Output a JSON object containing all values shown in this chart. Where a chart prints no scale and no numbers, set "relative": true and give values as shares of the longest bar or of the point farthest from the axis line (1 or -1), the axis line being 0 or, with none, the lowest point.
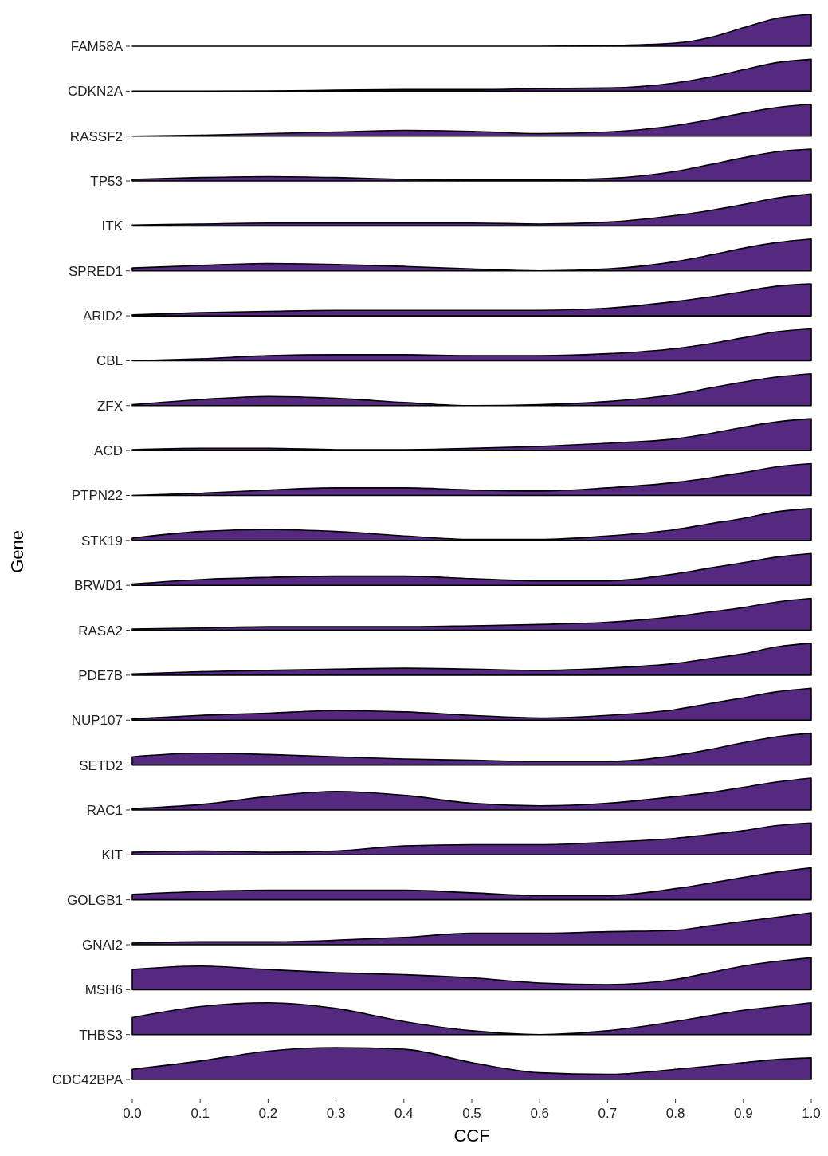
{
  "chart_data": [
    {
      "type": "area",
      "relative": true,
      "ylabel": "FAM58A",
      "xlim": [
        0,
        1
      ],
      "tick_labels": false,
      "x": [
        0,
        0.1,
        0.2,
        0.3,
        0.4,
        0.5,
        0.6,
        0.7,
        0.8,
        0.85,
        0.9,
        0.95,
        1
      ],
      "series": [
        {
          "color": "#55297f",
          "values": [
            0,
            0,
            0,
            0,
            0,
            0,
            0,
            0.02,
            0.1,
            0.27,
            0.58,
            0.88,
            1
          ]
        }
      ]
    },
    {
      "type": "area",
      "relative": true,
      "ylabel": "CDKN2A",
      "xlim": [
        0,
        1
      ],
      "tick_labels": false,
      "x": [
        0,
        0.1,
        0.2,
        0.3,
        0.4,
        0.5,
        0.6,
        0.7,
        0.8,
        0.85,
        0.9,
        0.95,
        1
      ],
      "series": [
        {
          "color": "#55297f",
          "values": [
            0,
            0,
            0.01,
            0.03,
            0.05,
            0.05,
            0.08,
            0.1,
            0.26,
            0.44,
            0.67,
            0.9,
            1
          ]
        }
      ]
    },
    {
      "type": "area",
      "relative": true,
      "ylabel": "RASSF2",
      "xlim": [
        0,
        1
      ],
      "tick_labels": false,
      "x": [
        0,
        0.1,
        0.2,
        0.3,
        0.4,
        0.5,
        0.6,
        0.7,
        0.8,
        0.85,
        0.9,
        0.95,
        1
      ],
      "series": [
        {
          "color": "#55297f",
          "values": [
            0,
            0.03,
            0.08,
            0.13,
            0.18,
            0.15,
            0.08,
            0.13,
            0.33,
            0.51,
            0.72,
            0.9,
            1
          ]
        }
      ]
    },
    {
      "type": "area",
      "relative": true,
      "ylabel": "TP53",
      "xlim": [
        0,
        1
      ],
      "tick_labels": false,
      "x": [
        0,
        0.1,
        0.2,
        0.3,
        0.4,
        0.5,
        0.6,
        0.7,
        0.8,
        0.85,
        0.9,
        0.95,
        1
      ],
      "series": [
        {
          "color": "#55297f",
          "values": [
            0.05,
            0.11,
            0.14,
            0.11,
            0.05,
            0.03,
            0.03,
            0.08,
            0.3,
            0.51,
            0.73,
            0.92,
            1
          ]
        }
      ]
    },
    {
      "type": "area",
      "relative": true,
      "ylabel": "ITK",
      "xlim": [
        0,
        1
      ],
      "tick_labels": false,
      "x": [
        0,
        0.1,
        0.2,
        0.3,
        0.4,
        0.5,
        0.6,
        0.7,
        0.8,
        0.85,
        0.9,
        0.95,
        1
      ],
      "series": [
        {
          "color": "#55297f",
          "values": [
            0.03,
            0.06,
            0.09,
            0.09,
            0.09,
            0.09,
            0.06,
            0.12,
            0.33,
            0.48,
            0.67,
            0.88,
            1
          ]
        }
      ]
    },
    {
      "type": "area",
      "relative": true,
      "ylabel": "SPRED1",
      "xlim": [
        0,
        1
      ],
      "tick_labels": false,
      "x": [
        0,
        0.1,
        0.2,
        0.3,
        0.4,
        0.5,
        0.6,
        0.7,
        0.8,
        0.85,
        0.9,
        0.95,
        1
      ],
      "series": [
        {
          "color": "#55297f",
          "values": [
            0.09,
            0.17,
            0.23,
            0.2,
            0.14,
            0.06,
            0,
            0.06,
            0.29,
            0.49,
            0.71,
            0.89,
            1
          ]
        }
      ]
    },
    {
      "type": "area",
      "relative": true,
      "ylabel": "ARID2",
      "xlim": [
        0,
        1
      ],
      "tick_labels": false,
      "x": [
        0,
        0.1,
        0.2,
        0.3,
        0.4,
        0.5,
        0.6,
        0.7,
        0.8,
        0.85,
        0.9,
        0.95,
        1
      ],
      "series": [
        {
          "color": "#55297f",
          "values": [
            0.03,
            0.1,
            0.14,
            0.17,
            0.17,
            0.17,
            0.17,
            0.24,
            0.45,
            0.59,
            0.76,
            0.93,
            1
          ]
        }
      ]
    },
    {
      "type": "area",
      "relative": true,
      "ylabel": "CBL",
      "xlim": [
        0,
        1
      ],
      "tick_labels": false,
      "x": [
        0,
        0.1,
        0.2,
        0.3,
        0.4,
        0.5,
        0.6,
        0.7,
        0.8,
        0.85,
        0.9,
        0.95,
        1
      ],
      "series": [
        {
          "color": "#55297f",
          "values": [
            0,
            0.06,
            0.16,
            0.19,
            0.19,
            0.16,
            0.16,
            0.22,
            0.38,
            0.53,
            0.72,
            0.91,
            1
          ]
        }
      ]
    },
    {
      "type": "area",
      "relative": true,
      "ylabel": "ZFX",
      "xlim": [
        0,
        1
      ],
      "tick_labels": false,
      "x": [
        0,
        0.1,
        0.2,
        0.3,
        0.4,
        0.5,
        0.6,
        0.7,
        0.8,
        0.85,
        0.9,
        0.95,
        1
      ],
      "series": [
        {
          "color": "#55297f",
          "values": [
            0.03,
            0.19,
            0.29,
            0.23,
            0.1,
            0,
            0.03,
            0.13,
            0.35,
            0.55,
            0.74,
            0.9,
            1
          ]
        }
      ]
    },
    {
      "type": "area",
      "relative": true,
      "ylabel": "ACD",
      "xlim": [
        0,
        1
      ],
      "tick_labels": false,
      "x": [
        0,
        0.1,
        0.2,
        0.3,
        0.4,
        0.5,
        0.6,
        0.7,
        0.8,
        0.85,
        0.9,
        0.95,
        1
      ],
      "series": [
        {
          "color": "#55297f",
          "values": [
            0.03,
            0.07,
            0.07,
            0.03,
            0.03,
            0.07,
            0.13,
            0.23,
            0.37,
            0.53,
            0.73,
            0.9,
            1
          ]
        }
      ]
    },
    {
      "type": "area",
      "relative": true,
      "ylabel": "PTPN22",
      "xlim": [
        0,
        1
      ],
      "tick_labels": false,
      "x": [
        0,
        0.1,
        0.2,
        0.3,
        0.4,
        0.5,
        0.6,
        0.7,
        0.8,
        0.85,
        0.9,
        0.95,
        1
      ],
      "series": [
        {
          "color": "#55297f",
          "values": [
            0,
            0.07,
            0.17,
            0.24,
            0.24,
            0.17,
            0.14,
            0.24,
            0.41,
            0.55,
            0.72,
            0.9,
            1
          ]
        }
      ]
    },
    {
      "type": "area",
      "relative": true,
      "ylabel": "STK19",
      "annotations": [
        "Gene"
      ],
      "xlim": [
        0,
        1
      ],
      "tick_labels": false,
      "x": [
        0,
        0.1,
        0.2,
        0.3,
        0.4,
        0.5,
        0.6,
        0.7,
        0.8,
        0.85,
        0.9,
        0.95,
        1
      ],
      "series": [
        {
          "color": "#55297f",
          "values": [
            0.07,
            0.28,
            0.34,
            0.28,
            0.14,
            0.03,
            0.03,
            0.14,
            0.34,
            0.52,
            0.69,
            0.9,
            1
          ]
        }
      ]
    },
    {
      "type": "area",
      "relative": true,
      "ylabel": "BRWD1",
      "xlim": [
        0,
        1
      ],
      "tick_labels": false,
      "x": [
        0,
        0.1,
        0.2,
        0.3,
        0.4,
        0.5,
        0.6,
        0.7,
        0.8,
        0.85,
        0.9,
        0.95,
        1
      ],
      "series": [
        {
          "color": "#55297f",
          "values": [
            0.04,
            0.18,
            0.25,
            0.29,
            0.29,
            0.21,
            0.14,
            0.14,
            0.36,
            0.54,
            0.71,
            0.89,
            1
          ]
        }
      ]
    },
    {
      "type": "area",
      "relative": true,
      "ylabel": "RASA2",
      "xlim": [
        0,
        1
      ],
      "tick_labels": false,
      "x": [
        0,
        0.1,
        0.2,
        0.3,
        0.4,
        0.5,
        0.6,
        0.7,
        0.8,
        0.85,
        0.9,
        0.95,
        1
      ],
      "series": [
        {
          "color": "#55297f",
          "values": [
            0.04,
            0.07,
            0.11,
            0.11,
            0.11,
            0.14,
            0.18,
            0.25,
            0.43,
            0.57,
            0.71,
            0.89,
            1
          ]
        }
      ]
    },
    {
      "type": "area",
      "relative": true,
      "ylabel": "PDE7B",
      "xlim": [
        0,
        1
      ],
      "tick_labels": false,
      "x": [
        0,
        0.1,
        0.2,
        0.3,
        0.4,
        0.5,
        0.6,
        0.7,
        0.8,
        0.85,
        0.9,
        0.95,
        1
      ],
      "series": [
        {
          "color": "#55297f",
          "values": [
            0.04,
            0.11,
            0.15,
            0.19,
            0.22,
            0.19,
            0.15,
            0.22,
            0.37,
            0.52,
            0.67,
            0.89,
            1
          ]
        }
      ]
    },
    {
      "type": "area",
      "relative": true,
      "ylabel": "NUP107",
      "xlim": [
        0,
        1
      ],
      "tick_labels": false,
      "x": [
        0,
        0.1,
        0.2,
        0.3,
        0.4,
        0.5,
        0.6,
        0.7,
        0.8,
        0.85,
        0.9,
        0.95,
        1
      ],
      "series": [
        {
          "color": "#55297f",
          "values": [
            0.04,
            0.15,
            0.22,
            0.3,
            0.26,
            0.15,
            0.07,
            0.15,
            0.33,
            0.52,
            0.7,
            0.89,
            1
          ]
        }
      ]
    },
    {
      "type": "area",
      "relative": true,
      "ylabel": "SETD2",
      "xlim": [
        0,
        1
      ],
      "tick_labels": false,
      "x": [
        0,
        0.1,
        0.2,
        0.3,
        0.4,
        0.5,
        0.6,
        0.7,
        0.8,
        0.85,
        0.9,
        0.95,
        1
      ],
      "series": [
        {
          "color": "#55297f",
          "values": [
            0.26,
            0.37,
            0.33,
            0.26,
            0.19,
            0.15,
            0.11,
            0.11,
            0.3,
            0.48,
            0.7,
            0.89,
            1
          ]
        }
      ]
    },
    {
      "type": "area",
      "relative": true,
      "ylabel": "RAC1",
      "xlim": [
        0,
        1
      ],
      "tick_labels": false,
      "x": [
        0,
        0.1,
        0.2,
        0.3,
        0.4,
        0.5,
        0.6,
        0.7,
        0.8,
        0.85,
        0.9,
        0.95,
        1
      ],
      "series": [
        {
          "color": "#55297f",
          "values": [
            0.04,
            0.17,
            0.42,
            0.58,
            0.46,
            0.21,
            0.13,
            0.21,
            0.42,
            0.54,
            0.71,
            0.88,
            1
          ]
        }
      ]
    },
    {
      "type": "area",
      "relative": true,
      "ylabel": "KIT",
      "xlim": [
        0,
        1
      ],
      "tick_labels": false,
      "x": [
        0,
        0.1,
        0.2,
        0.3,
        0.4,
        0.5,
        0.6,
        0.7,
        0.8,
        0.85,
        0.9,
        0.95,
        1
      ],
      "series": [
        {
          "color": "#55297f",
          "values": [
            0.08,
            0.12,
            0.08,
            0.12,
            0.28,
            0.32,
            0.32,
            0.4,
            0.52,
            0.64,
            0.76,
            0.92,
            1
          ]
        }
      ]
    },
    {
      "type": "area",
      "relative": true,
      "ylabel": "GOLGB1",
      "xlim": [
        0,
        1
      ],
      "tick_labels": false,
      "x": [
        0,
        0.1,
        0.2,
        0.3,
        0.4,
        0.5,
        0.6,
        0.7,
        0.8,
        0.85,
        0.9,
        0.95,
        1
      ],
      "series": [
        {
          "color": "#55297f",
          "values": [
            0.17,
            0.26,
            0.3,
            0.3,
            0.3,
            0.22,
            0.13,
            0.13,
            0.35,
            0.52,
            0.7,
            0.87,
            1
          ]
        }
      ]
    },
    {
      "type": "area",
      "relative": true,
      "ylabel": "GNAI2",
      "xlim": [
        0,
        1
      ],
      "tick_labels": false,
      "x": [
        0,
        0.1,
        0.2,
        0.3,
        0.4,
        0.5,
        0.6,
        0.7,
        0.8,
        0.85,
        0.9,
        0.95,
        1
      ],
      "series": [
        {
          "color": "#55297f",
          "values": [
            0.05,
            0.09,
            0.09,
            0.14,
            0.23,
            0.36,
            0.36,
            0.41,
            0.45,
            0.59,
            0.73,
            0.86,
            1
          ]
        }
      ]
    },
    {
      "type": "area",
      "relative": true,
      "ylabel": "MSH6",
      "xlim": [
        0,
        1
      ],
      "tick_labels": false,
      "x": [
        0,
        0.1,
        0.2,
        0.3,
        0.4,
        0.5,
        0.6,
        0.7,
        0.8,
        0.85,
        0.9,
        0.95,
        1
      ],
      "series": [
        {
          "color": "#55297f",
          "values": [
            0.63,
            0.74,
            0.63,
            0.53,
            0.47,
            0.37,
            0.21,
            0.16,
            0.32,
            0.53,
            0.74,
            0.89,
            1
          ]
        }
      ]
    },
    {
      "type": "area",
      "relative": true,
      "ylabel": "THBS3",
      "xlim": [
        0,
        1
      ],
      "tick_labels": false,
      "x": [
        0,
        0.1,
        0.2,
        0.3,
        0.4,
        0.5,
        0.6,
        0.7,
        0.8,
        0.85,
        0.9,
        0.95,
        1
      ],
      "series": [
        {
          "color": "#55297f",
          "values": [
            0.53,
            0.88,
            1,
            0.82,
            0.41,
            0.12,
            0,
            0.12,
            0.41,
            0.59,
            0.76,
            0.88,
            1
          ]
        }
      ]
    },
    {
      "type": "area",
      "relative": true,
      "ylabel": "CDC42BPA",
      "xlabel": "CCF",
      "xlim": [
        0,
        1
      ],
      "tick_labels": "x",
      "xticks": [
        {
          "value": 0,
          "label": "0.0"
        },
        0.1,
        0.2,
        0.3,
        0.4,
        0.5,
        0.6,
        0.7,
        0.8,
        0.9,
        {
          "value": 1,
          "label": "1.0"
        }
      ],
      "x": [
        0,
        0.1,
        0.2,
        0.3,
        0.4,
        0.5,
        0.6,
        0.7,
        0.8,
        0.85,
        0.9,
        0.95,
        1
      ],
      "series": [
        {
          "color": "#55297f",
          "values": [
            0.32,
            0.58,
            0.89,
            1,
            0.95,
            0.53,
            0.21,
            0.16,
            0.32,
            0.42,
            0.53,
            0.63,
            0.68
          ]
        }
      ]
    }
  ]
}
